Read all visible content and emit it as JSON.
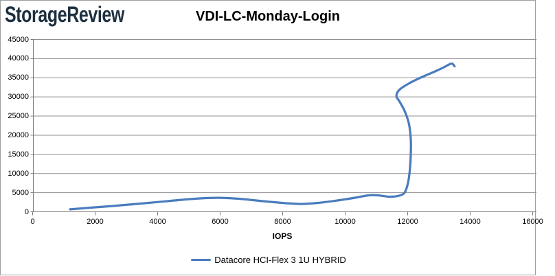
{
  "brand": {
    "logo_text": "StorageReview",
    "logo_color": "#1d3040"
  },
  "chart_data": {
    "type": "line",
    "title": "VDI-LC-Monday-Login",
    "xlabel": "IOPS",
    "ylabel": "",
    "xlim": [
      0,
      16000
    ],
    "ylim": [
      0,
      45000
    ],
    "x_ticks": [
      0,
      2000,
      4000,
      6000,
      8000,
      10000,
      12000,
      14000,
      16000
    ],
    "y_ticks": [
      0,
      5000,
      10000,
      15000,
      20000,
      25000,
      30000,
      35000,
      40000,
      45000
    ],
    "grid": "horizontal",
    "grid_color": "#8f8f8f",
    "axis_color": "#7a7a7a",
    "legend_position": "bottom",
    "series": [
      {
        "name": "Datacore HCI-Flex 3 1U HYBRID",
        "color": "#4a7cbe",
        "points": [
          [
            1200,
            650
          ],
          [
            1800,
            1050
          ],
          [
            2600,
            1550
          ],
          [
            3400,
            2100
          ],
          [
            4200,
            2700
          ],
          [
            5000,
            3300
          ],
          [
            5600,
            3600
          ],
          [
            6000,
            3650
          ],
          [
            6600,
            3400
          ],
          [
            7400,
            2750
          ],
          [
            8100,
            2250
          ],
          [
            8600,
            2050
          ],
          [
            9100,
            2300
          ],
          [
            9700,
            2900
          ],
          [
            10300,
            3650
          ],
          [
            10750,
            4300
          ],
          [
            11050,
            4300
          ],
          [
            11400,
            3950
          ],
          [
            11700,
            4150
          ],
          [
            11900,
            5000
          ],
          [
            12010,
            7500
          ],
          [
            12070,
            11000
          ],
          [
            12100,
            15000
          ],
          [
            12100,
            19000
          ],
          [
            12040,
            23000
          ],
          [
            11910,
            26200
          ],
          [
            11740,
            28800
          ],
          [
            11640,
            30200
          ],
          [
            11740,
            31900
          ],
          [
            12060,
            33600
          ],
          [
            12460,
            35200
          ],
          [
            12860,
            36600
          ],
          [
            13150,
            37700
          ],
          [
            13400,
            38700
          ],
          [
            13500,
            38000
          ]
        ]
      }
    ]
  }
}
